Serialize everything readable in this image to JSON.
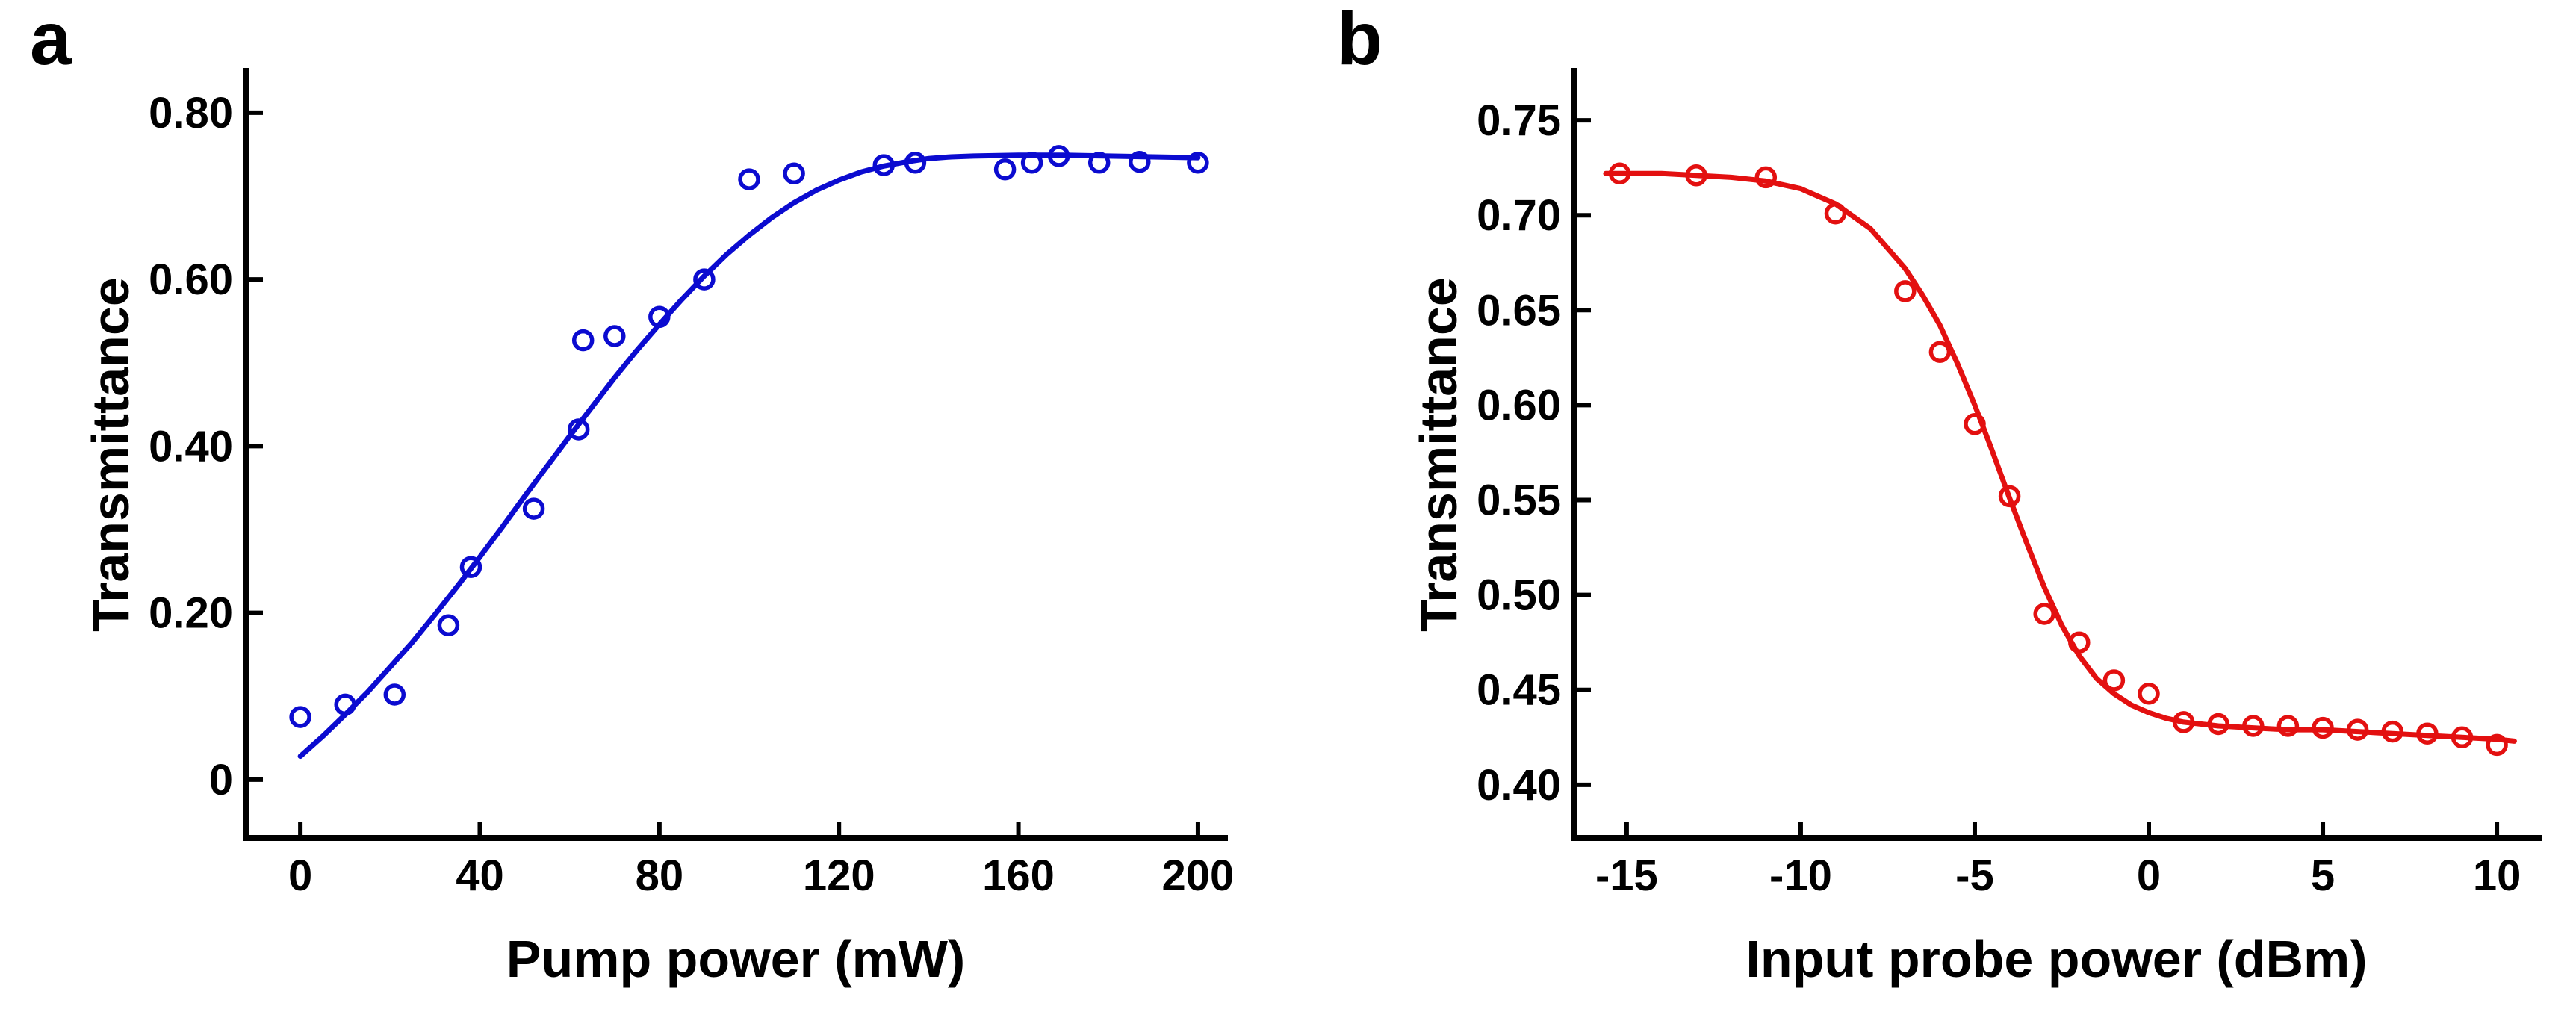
{
  "figure": {
    "background": "#ffffff",
    "text_color": "#000000"
  },
  "chart_data": [
    {
      "panel_label": "a",
      "type": "scatter",
      "marker": "open-circle",
      "color": "#0b0bd0",
      "xlabel": "Pump power (mW)",
      "ylabel": "Transmittance",
      "xlim": [
        -12,
        206
      ],
      "ylim": [
        -0.07,
        0.85
      ],
      "grid": false,
      "legend": "none",
      "xticks": [
        {
          "v": 0,
          "label": "0"
        },
        {
          "v": 40,
          "label": "40"
        },
        {
          "v": 80,
          "label": "80"
        },
        {
          "v": 120,
          "label": "120"
        },
        {
          "v": 160,
          "label": "160"
        },
        {
          "v": 200,
          "label": "200"
        }
      ],
      "yticks": [
        {
          "v": 0.0,
          "label": "0"
        },
        {
          "v": 0.2,
          "label": "0.20"
        },
        {
          "v": 0.4,
          "label": "0.40"
        },
        {
          "v": 0.6,
          "label": "0.60"
        },
        {
          "v": 0.8,
          "label": "0.80"
        }
      ],
      "points": {
        "x": [
          0,
          10,
          21,
          33,
          38,
          52,
          62,
          63,
          70,
          80,
          90,
          100,
          110,
          130,
          137,
          157,
          163,
          169,
          178,
          187,
          200
        ],
        "y": [
          0.075,
          0.09,
          0.102,
          0.185,
          0.255,
          0.325,
          0.42,
          0.527,
          0.532,
          0.555,
          0.6,
          0.72,
          0.727,
          0.737,
          0.74,
          0.732,
          0.74,
          0.748,
          0.74,
          0.741,
          0.74
        ]
      },
      "fit": {
        "x": [
          0,
          5,
          10,
          15,
          20,
          25,
          30,
          35,
          40,
          45,
          50,
          55,
          60,
          65,
          70,
          75,
          80,
          85,
          90,
          95,
          100,
          105,
          110,
          115,
          120,
          125,
          130,
          135,
          140,
          145,
          150,
          160,
          170,
          180,
          190,
          200
        ],
        "y": [
          0.028,
          0.052,
          0.078,
          0.105,
          0.135,
          0.165,
          0.198,
          0.232,
          0.267,
          0.303,
          0.34,
          0.376,
          0.412,
          0.447,
          0.482,
          0.515,
          0.546,
          0.576,
          0.604,
          0.63,
          0.653,
          0.674,
          0.692,
          0.707,
          0.719,
          0.729,
          0.736,
          0.741,
          0.745,
          0.747,
          0.748,
          0.749,
          0.749,
          0.748,
          0.747,
          0.746
        ]
      }
    },
    {
      "panel_label": "b",
      "type": "scatter",
      "marker": "open-circle",
      "color": "#e31010",
      "xlabel": "Input probe power (dBm)",
      "ylabel": "Transmittance",
      "xlim": [
        -16.5,
        11.2
      ],
      "ylim": [
        0.372,
        0.776
      ],
      "grid": false,
      "legend": "none",
      "xticks": [
        {
          "v": -15,
          "label": "-15"
        },
        {
          "v": -10,
          "label": "-10"
        },
        {
          "v": -5,
          "label": "-5"
        },
        {
          "v": 0,
          "label": "0"
        },
        {
          "v": 5,
          "label": "5"
        },
        {
          "v": 10,
          "label": "10"
        }
      ],
      "yticks": [
        {
          "v": 0.4,
          "label": "0.40"
        },
        {
          "v": 0.45,
          "label": "0.45"
        },
        {
          "v": 0.5,
          "label": "0.50"
        },
        {
          "v": 0.55,
          "label": "0.55"
        },
        {
          "v": 0.6,
          "label": "0.60"
        },
        {
          "v": 0.65,
          "label": "0.65"
        },
        {
          "v": 0.7,
          "label": "0.70"
        },
        {
          "v": 0.75,
          "label": "0.75"
        }
      ],
      "points": {
        "x": [
          -15.2,
          -13,
          -11,
          -9,
          -7,
          -6,
          -5,
          -4,
          -3,
          -2,
          -1,
          0,
          1,
          2,
          3,
          4,
          5,
          6,
          7,
          8,
          9,
          10
        ],
        "y": [
          0.722,
          0.721,
          0.72,
          0.701,
          0.66,
          0.628,
          0.59,
          0.552,
          0.49,
          0.475,
          0.455,
          0.448,
          0.433,
          0.432,
          0.431,
          0.431,
          0.43,
          0.429,
          0.428,
          0.427,
          0.425,
          0.421
        ]
      },
      "fit": {
        "x": [
          -15.6,
          -14,
          -13,
          -12,
          -11,
          -10,
          -9,
          -8,
          -7,
          -6.5,
          -6,
          -5.5,
          -5,
          -4.5,
          -4,
          -3.5,
          -3,
          -2.5,
          -2,
          -1.5,
          -1,
          -0.5,
          0,
          0.5,
          1,
          2,
          3,
          4,
          5,
          6,
          7,
          8,
          9,
          10,
          10.5
        ],
        "y": [
          0.722,
          0.722,
          0.721,
          0.72,
          0.718,
          0.714,
          0.706,
          0.693,
          0.672,
          0.658,
          0.642,
          0.622,
          0.6,
          0.576,
          0.551,
          0.527,
          0.504,
          0.484,
          0.468,
          0.456,
          0.448,
          0.442,
          0.438,
          0.435,
          0.433,
          0.431,
          0.43,
          0.429,
          0.429,
          0.428,
          0.427,
          0.426,
          0.425,
          0.424,
          0.423
        ]
      }
    }
  ]
}
